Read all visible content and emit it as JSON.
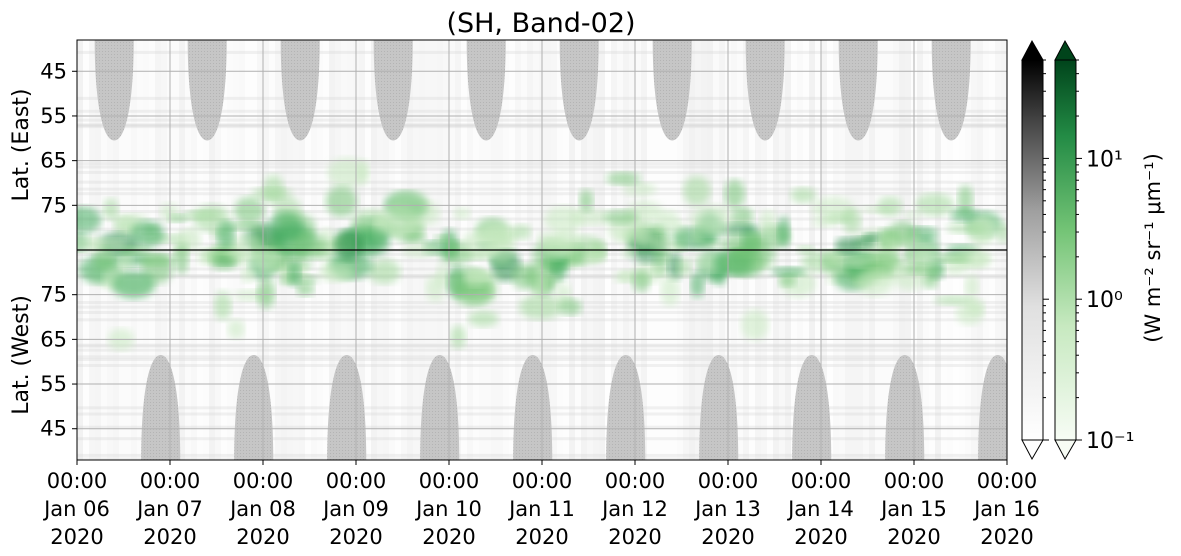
{
  "chart_data": {
    "type": "heatmap",
    "title": "(SH, Band-02)",
    "ylabel_top": "Lat. (East)",
    "ylabel_bottom": "Lat. (West)",
    "yticks_top": [
      45,
      55,
      65,
      75
    ],
    "yticks_bottom": [
      75,
      65,
      55,
      45
    ],
    "ylim_top": [
      38,
      85
    ],
    "ylim_bottom": [
      85,
      38
    ],
    "xlim": [
      "2020-01-06 00:00",
      "2020-01-16 00:00"
    ],
    "xticks": [
      {
        "time": "00:00",
        "date": "Jan 06",
        "year": "2020"
      },
      {
        "time": "00:00",
        "date": "Jan 07",
        "year": "2020"
      },
      {
        "time": "00:00",
        "date": "Jan 08",
        "year": "2020"
      },
      {
        "time": "00:00",
        "date": "Jan 09",
        "year": "2020"
      },
      {
        "time": "00:00",
        "date": "Jan 10",
        "year": "2020"
      },
      {
        "time": "00:00",
        "date": "Jan 11",
        "year": "2020"
      },
      {
        "time": "00:00",
        "date": "Jan 12",
        "year": "2020"
      },
      {
        "time": "00:00",
        "date": "Jan 13",
        "year": "2020"
      },
      {
        "time": "00:00",
        "date": "Jan 14",
        "year": "2020"
      },
      {
        "time": "00:00",
        "date": "Jan 15",
        "year": "2020"
      },
      {
        "time": "00:00",
        "date": "Jan 16",
        "year": "2020"
      }
    ],
    "grid": true,
    "colorbar": {
      "label": "(W m⁻² sr⁻¹ μm⁻¹)",
      "scale": "log",
      "range": [
        0.1,
        50
      ],
      "ticks": [
        "10⁻¹",
        "10⁰",
        "10¹"
      ],
      "tick_values": [
        0.1,
        1,
        10
      ],
      "maps": [
        "Greys",
        "Greens"
      ],
      "extend": "both"
    },
    "sunlit_mask_days_east": [
      0.4,
      1.4,
      2.4,
      3.4,
      4.4,
      5.4,
      6.4,
      7.4,
      8.4,
      9.4
    ],
    "sunlit_mask_days_west": [
      0.9,
      1.9,
      2.9,
      3.9,
      4.9,
      5.9,
      6.9,
      7.9,
      8.9,
      9.9
    ]
  }
}
